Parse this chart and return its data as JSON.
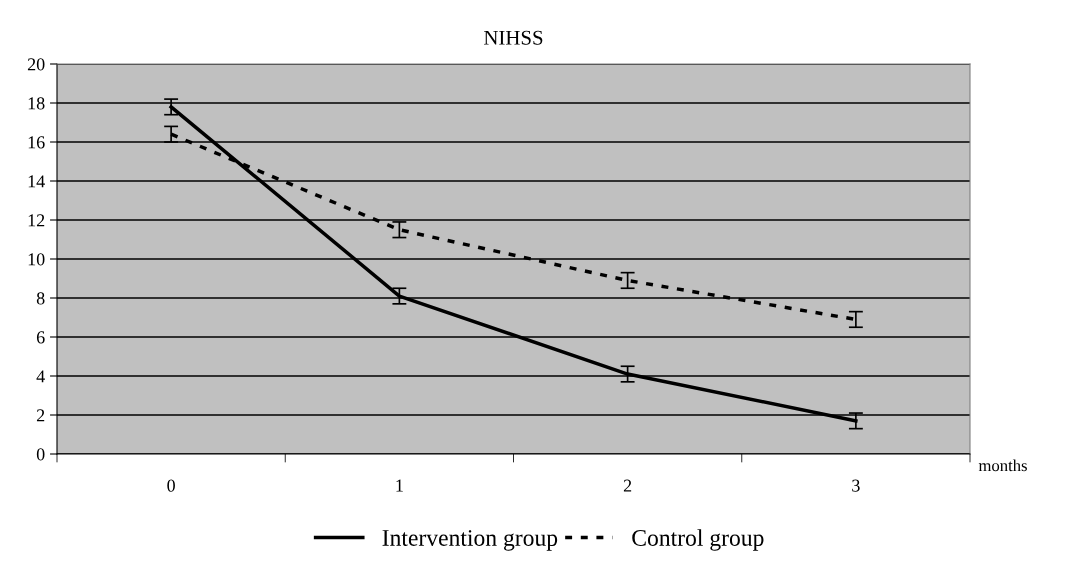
{
  "chart_data": {
    "type": "line",
    "title": "NIHSS",
    "xlabel": "months",
    "categories": [
      "0",
      "1",
      "2",
      "3"
    ],
    "series": [
      {
        "name": "Intervention group",
        "color": "#000000",
        "line_style": "solid",
        "values": [
          17.8,
          8.1,
          4.1,
          1.7
        ],
        "errors": [
          0.4,
          0.4,
          0.4,
          0.4
        ]
      },
      {
        "name": "Control group",
        "color": "#000000",
        "line_style": "dashed",
        "values": [
          16.4,
          11.5,
          8.9,
          6.9
        ],
        "errors": [
          0.4,
          0.4,
          0.4,
          0.4
        ]
      }
    ],
    "ylim": [
      0,
      20
    ],
    "yticks": [
      0,
      2,
      4,
      6,
      8,
      10,
      12,
      14,
      16,
      18,
      20
    ],
    "grid": "y",
    "legend": "bottom",
    "marker": "none"
  }
}
